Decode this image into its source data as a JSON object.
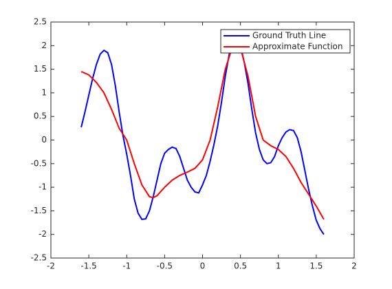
{
  "chart_data": {
    "type": "line",
    "series": [
      {
        "name": "Ground Truth Line",
        "color": "#0000ff",
        "x": [
          -1.6,
          -1.55,
          -1.5,
          -1.45,
          -1.4,
          -1.35,
          -1.3,
          -1.25,
          -1.2,
          -1.15,
          -1.1,
          -1.05,
          -1.0,
          -0.95,
          -0.9,
          -0.85,
          -0.8,
          -0.75,
          -0.7,
          -0.65,
          -0.6,
          -0.55,
          -0.5,
          -0.45,
          -0.4,
          -0.35,
          -0.3,
          -0.25,
          -0.2,
          -0.15,
          -0.1,
          -0.05,
          0,
          0.05,
          0.1,
          0.15,
          0.2,
          0.25,
          0.3,
          0.35,
          0.4,
          0.45,
          0.5,
          0.55,
          0.6,
          0.65,
          0.7,
          0.75,
          0.8,
          0.85,
          0.9,
          0.95,
          1.0,
          1.05,
          1.1,
          1.15,
          1.2,
          1.25,
          1.3,
          1.35,
          1.4,
          1.45,
          1.5,
          1.55,
          1.6
        ],
        "values": [
          0.27,
          0.6,
          0.95,
          1.3,
          1.6,
          1.82,
          1.9,
          1.85,
          1.6,
          1.15,
          0.6,
          0.1,
          -0.3,
          -0.75,
          -1.25,
          -1.55,
          -1.68,
          -1.67,
          -1.5,
          -1.2,
          -0.85,
          -0.5,
          -0.28,
          -0.2,
          -0.15,
          -0.18,
          -0.35,
          -0.6,
          -0.85,
          -1.0,
          -1.1,
          -1.12,
          -0.95,
          -0.75,
          -0.45,
          -0.1,
          0.3,
          0.8,
          1.35,
          1.8,
          2.1,
          2.15,
          2.0,
          1.65,
          1.2,
          0.65,
          0.15,
          -0.2,
          -0.42,
          -0.5,
          -0.48,
          -0.35,
          -0.12,
          0.05,
          0.17,
          0.22,
          0.2,
          0.05,
          -0.25,
          -0.65,
          -1.05,
          -1.4,
          -1.7,
          -1.88,
          -2.0
        ]
      },
      {
        "name": "Approximate Function",
        "color": "#ff0000",
        "x": [
          -1.6,
          -1.5,
          -1.4,
          -1.3,
          -1.2,
          -1.1,
          -1.0,
          -0.9,
          -0.8,
          -0.7,
          -0.65,
          -0.6,
          -0.5,
          -0.4,
          -0.3,
          -0.2,
          -0.1,
          0,
          0.1,
          0.2,
          0.3,
          0.4,
          0.45,
          0.5,
          0.6,
          0.7,
          0.8,
          0.9,
          1.0,
          1.1,
          1.2,
          1.3,
          1.4,
          1.5,
          1.6
        ],
        "values": [
          1.45,
          1.38,
          1.22,
          1.0,
          0.65,
          0.25,
          0.0,
          -0.5,
          -0.95,
          -1.2,
          -1.22,
          -1.18,
          -1.0,
          -0.85,
          -0.75,
          -0.68,
          -0.6,
          -0.42,
          0.0,
          0.7,
          1.5,
          2.0,
          2.05,
          1.95,
          1.35,
          0.5,
          0.0,
          -0.12,
          -0.2,
          -0.35,
          -0.6,
          -0.9,
          -1.15,
          -1.4,
          -1.68
        ]
      }
    ],
    "xlim": [
      -2,
      2
    ],
    "xticks": [
      -2,
      -1.5,
      -1,
      -0.5,
      0,
      0.5,
      1,
      1.5,
      2
    ],
    "ylim": [
      -2.5,
      2.5
    ],
    "yticks": [
      -2.5,
      -2,
      -1.5,
      -1,
      -0.5,
      0,
      0.5,
      1,
      1.5,
      2,
      2.5
    ],
    "legend": "northeast"
  }
}
